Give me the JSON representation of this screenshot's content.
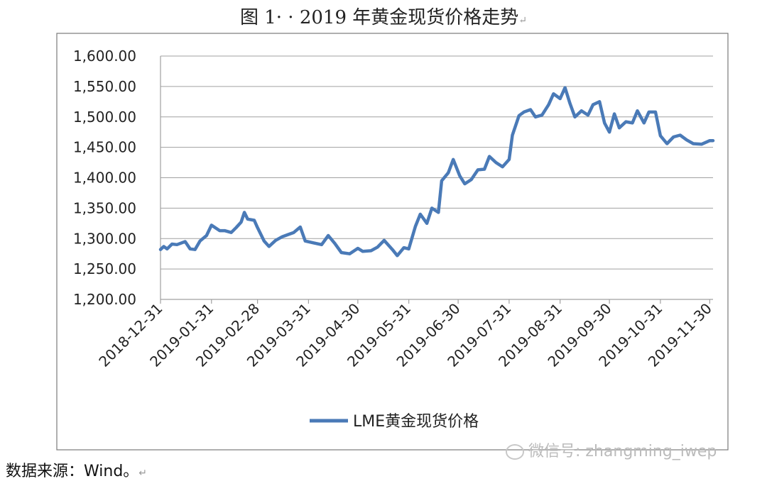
{
  "caption": "图 1· · 2019 年黄金现货价格走势",
  "source_note": "数据来源：Wind。",
  "watermark": "微信号: zhangming_iwep",
  "para_mark": "↵",
  "colors": {
    "series": "#4a7ab7",
    "grid": "#a0a0a0",
    "frame": "#7a7a7a"
  },
  "chart_data": {
    "type": "line",
    "title": "",
    "xlabel": "",
    "ylabel": "",
    "ylim": [
      1200,
      1600
    ],
    "yticks": [
      "1,200.00",
      "1,250.00",
      "1,300.00",
      "1,350.00",
      "1,400.00",
      "1,450.00",
      "1,500.00",
      "1,550.00",
      "1,600.00"
    ],
    "xlim": [
      "2018-12-31",
      "2019-12-02"
    ],
    "xticks": [
      "2018-12-31",
      "2019-01-31",
      "2019-02-28",
      "2019-03-31",
      "2019-04-30",
      "2019-05-31",
      "2019-06-30",
      "2019-07-31",
      "2019-08-31",
      "2019-09-30",
      "2019-10-31",
      "2019-11-30"
    ],
    "grid": true,
    "legend_position": "bottom",
    "series": [
      {
        "name": "LME黄金现货价格",
        "color": "#4a7ab7",
        "x": [
          "2018-12-31",
          "2019-01-02",
          "2019-01-04",
          "2019-01-07",
          "2019-01-10",
          "2019-01-15",
          "2019-01-18",
          "2019-01-21",
          "2019-01-24",
          "2019-01-28",
          "2019-01-31",
          "2019-02-05",
          "2019-02-08",
          "2019-02-12",
          "2019-02-15",
          "2019-02-18",
          "2019-02-20",
          "2019-02-22",
          "2019-02-26",
          "2019-02-28",
          "2019-03-04",
          "2019-03-07",
          "2019-03-11",
          "2019-03-15",
          "2019-03-18",
          "2019-03-22",
          "2019-03-26",
          "2019-03-29",
          "2019-04-03",
          "2019-04-08",
          "2019-04-12",
          "2019-04-16",
          "2019-04-20",
          "2019-04-25",
          "2019-04-30",
          "2019-05-03",
          "2019-05-08",
          "2019-05-12",
          "2019-05-16",
          "2019-05-21",
          "2019-05-24",
          "2019-05-28",
          "2019-05-31",
          "2019-06-04",
          "2019-06-07",
          "2019-06-11",
          "2019-06-14",
          "2019-06-18",
          "2019-06-20",
          "2019-06-24",
          "2019-06-27",
          "2019-07-01",
          "2019-07-04",
          "2019-07-08",
          "2019-07-12",
          "2019-07-16",
          "2019-07-19",
          "2019-07-23",
          "2019-07-27",
          "2019-07-31",
          "2019-08-02",
          "2019-08-06",
          "2019-08-09",
          "2019-08-13",
          "2019-08-16",
          "2019-08-20",
          "2019-08-24",
          "2019-08-27",
          "2019-08-31",
          "2019-09-03",
          "2019-09-06",
          "2019-09-09",
          "2019-09-13",
          "2019-09-17",
          "2019-09-20",
          "2019-09-24",
          "2019-09-27",
          "2019-09-30",
          "2019-10-03",
          "2019-10-06",
          "2019-10-10",
          "2019-10-14",
          "2019-10-17",
          "2019-10-21",
          "2019-10-24",
          "2019-10-28",
          "2019-10-31",
          "2019-11-04",
          "2019-11-08",
          "2019-11-12",
          "2019-11-16",
          "2019-11-20",
          "2019-11-25",
          "2019-11-30",
          "2019-12-02"
        ],
        "values": [
          1282,
          1287,
          1283,
          1291,
          1290,
          1295,
          1283,
          1282,
          1296,
          1305,
          1322,
          1313,
          1313,
          1310,
          1318,
          1327,
          1343,
          1332,
          1330,
          1318,
          1296,
          1287,
          1297,
          1303,
          1306,
          1310,
          1319,
          1296,
          1293,
          1290,
          1305,
          1292,
          1277,
          1275,
          1284,
          1279,
          1280,
          1286,
          1297,
          1282,
          1272,
          1285,
          1283,
          1320,
          1340,
          1325,
          1350,
          1343,
          1395,
          1408,
          1430,
          1403,
          1390,
          1397,
          1413,
          1414,
          1435,
          1425,
          1418,
          1430,
          1470,
          1502,
          1508,
          1512,
          1500,
          1503,
          1520,
          1538,
          1530,
          1548,
          1522,
          1500,
          1510,
          1503,
          1520,
          1525,
          1490,
          1475,
          1505,
          1482,
          1492,
          1490,
          1510,
          1490,
          1508,
          1508,
          1469,
          1456,
          1467,
          1470,
          1462,
          1456,
          1455,
          1461,
          1461
        ]
      }
    ]
  }
}
